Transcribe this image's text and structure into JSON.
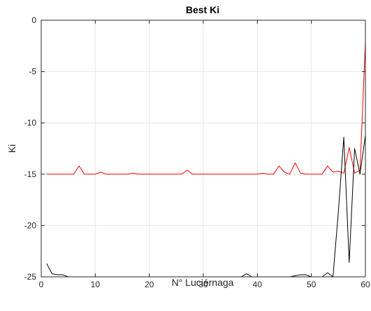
{
  "chart_data": {
    "type": "line",
    "title": "Best Ki",
    "xlabel": "N° Luciérnaga",
    "ylabel": "Ki",
    "xlim": [
      0,
      60
    ],
    "ylim": [
      -25,
      0
    ],
    "xticks": [
      0,
      10,
      20,
      30,
      40,
      50,
      60
    ],
    "yticks": [
      0,
      -5,
      -10,
      -15,
      -20,
      -25
    ],
    "grid": true,
    "series": [
      {
        "color": "#ff0000",
        "x": [
          1,
          2,
          3,
          4,
          5,
          6,
          7,
          8,
          9,
          10,
          11,
          12,
          13,
          14,
          15,
          16,
          17,
          18,
          19,
          20,
          21,
          22,
          23,
          24,
          25,
          26,
          27,
          28,
          29,
          30,
          31,
          32,
          33,
          34,
          35,
          36,
          37,
          38,
          39,
          40,
          41,
          42,
          43,
          44,
          45,
          46,
          47,
          48,
          49,
          50,
          51,
          52,
          53,
          54,
          55,
          56,
          57,
          58,
          59,
          60
        ],
        "values": [
          -15,
          -15,
          -15,
          -15,
          -15,
          -15,
          -14.2,
          -15,
          -15,
          -15,
          -14.8,
          -15,
          -15,
          -15,
          -15,
          -15,
          -14.9,
          -15,
          -15,
          -15,
          -15,
          -15,
          -15,
          -15,
          -15,
          -15,
          -14.6,
          -15,
          -15,
          -15,
          -15,
          -15,
          -15,
          -15,
          -15,
          -15,
          -15,
          -15,
          -15,
          -15,
          -14.9,
          -15,
          -15,
          -14.2,
          -14.8,
          -15,
          -13.9,
          -14.9,
          -15,
          -15,
          -15,
          -15,
          -14.2,
          -14.8,
          -14.7,
          -14.9,
          -12.4,
          -14.9,
          -14.6,
          -2.1
        ]
      },
      {
        "color": "#000000",
        "x": [
          1,
          2,
          3,
          4,
          5,
          6,
          7,
          8,
          9,
          10,
          11,
          12,
          13,
          14,
          15,
          16,
          17,
          18,
          19,
          20,
          21,
          22,
          23,
          24,
          25,
          26,
          27,
          28,
          29,
          30,
          31,
          32,
          33,
          34,
          35,
          36,
          37,
          38,
          39,
          40,
          41,
          42,
          43,
          44,
          45,
          46,
          47,
          48,
          49,
          50,
          51,
          52,
          53,
          54,
          55,
          56,
          57,
          58,
          59,
          60
        ],
        "values": [
          -23.7,
          -24.7,
          -24.8,
          -24.8,
          -25,
          -25,
          -25,
          -25,
          -25,
          -25,
          -25,
          -25,
          -25,
          -25,
          -25,
          -25,
          -25,
          -25,
          -25,
          -25,
          -25,
          -25,
          -25,
          -25,
          -25,
          -25,
          -25,
          -25,
          -25,
          -25,
          -25,
          -25,
          -25,
          -25,
          -25,
          -25,
          -25,
          -24.7,
          -25,
          -25,
          -25,
          -25,
          -25,
          -25,
          -25,
          -25,
          -24.9,
          -24.8,
          -24.8,
          -25,
          -25,
          -25,
          -24.6,
          -25,
          -18.6,
          -11.4,
          -23.6,
          -12.5,
          -15,
          -11.2
        ]
      }
    ]
  }
}
